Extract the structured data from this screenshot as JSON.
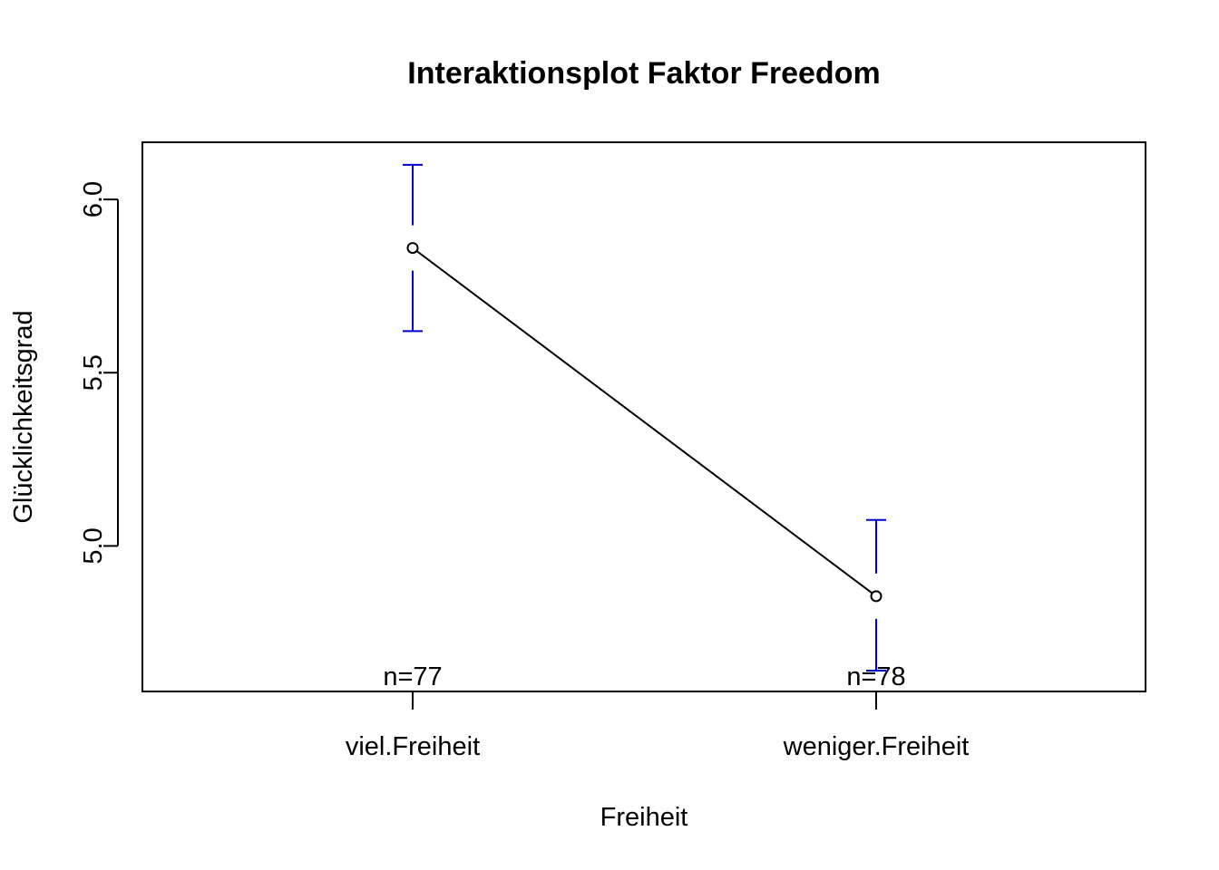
{
  "chart_data": {
    "type": "line",
    "title": "Interaktionsplot Faktor Freedom",
    "xlabel": "Freiheit",
    "ylabel": "Glücklichkeitsgrad",
    "categories": [
      "viel.Freiheit",
      "weniger.Freiheit"
    ],
    "means": [
      5.86,
      4.855
    ],
    "ci_upper": [
      6.1,
      5.075
    ],
    "ci_lower": [
      5.62,
      4.64
    ],
    "n_labels": [
      "n=77",
      "n=78"
    ],
    "y_ticks": [
      5.0,
      5.5,
      6.0
    ],
    "y_tick_labels": [
      "5.0",
      "5.5",
      "6.0"
    ],
    "ylim": [
      4.58,
      6.165
    ],
    "grid": false,
    "legend": "none",
    "colors": {
      "line": "#000000",
      "error_bars": "#0000cd",
      "frame": "#000000"
    }
  }
}
